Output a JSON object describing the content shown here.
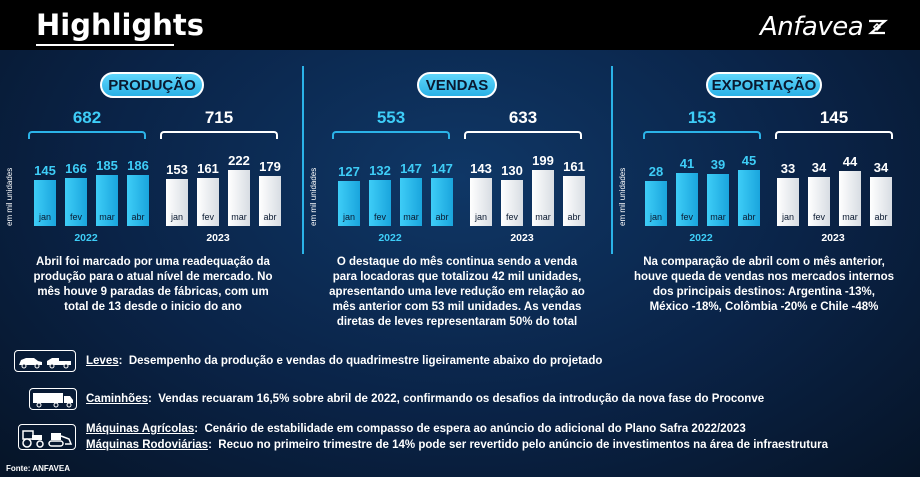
{
  "header": {
    "title": "Highlights",
    "logo": "Anfavea"
  },
  "sections": [
    {
      "label": "PRODUÇÃO",
      "total_2022": "682",
      "total_2023": "715",
      "ylabel": "em mil unidades",
      "year_2022": "2022",
      "year_2023": "2023",
      "values_2022": [
        145,
        166,
        185,
        186
      ],
      "values_2023": [
        153,
        161,
        222,
        179
      ],
      "months_2022": [
        "jan",
        "fev",
        "mar",
        "abr"
      ],
      "months_2023": [
        "jan",
        "fev",
        "mar",
        "abr"
      ],
      "desc": [
        "Abril foi marcado por uma readequação da",
        "produção para o atual nível de mercado. No",
        "mês houve 9 paradas de fábricas, com um",
        "total de 13 desde o inicio do ano"
      ]
    },
    {
      "label": "VENDAS",
      "total_2022": "553",
      "total_2023": "633",
      "ylabel": "em mil unidades",
      "year_2022": "2022",
      "year_2023": "2023",
      "values_2022": [
        127,
        132,
        147,
        147
      ],
      "values_2023": [
        143,
        130,
        199,
        161
      ],
      "months_2022": [
        "jan",
        "fev",
        "mar",
        "abr"
      ],
      "months_2023": [
        "jan",
        "fev",
        "mar",
        "abr"
      ],
      "desc": [
        "O destaque do mês continua sendo a venda",
        "para locadoras que totalizou 42 mil unidades,",
        "apresentando uma leve redução em relação ao",
        "mês anterior com 53 mil unidades. As vendas",
        "diretas de leves representaram 50% do total"
      ]
    },
    {
      "label": "EXPORTAÇÃO",
      "total_2022": "153",
      "total_2023": "145",
      "ylabel": "em mil unidades",
      "year_2022": "2022",
      "year_2023": "2023",
      "values_2022": [
        28,
        41,
        39,
        45
      ],
      "values_2023": [
        33,
        34,
        44,
        34
      ],
      "months_2022": [
        "jan",
        "fev",
        "mar",
        "abr"
      ],
      "months_2023": [
        "jan",
        "fev",
        "mar",
        "abr"
      ],
      "desc": [
        "Na comparação de abril com o mês anterior,",
        "houve queda de vendas nos mercados internos",
        "dos principais destinos: Argentina -13%,",
        "México -18%, Colômbia -20% e Chile -48%"
      ]
    }
  ],
  "rows": [
    {
      "label": "Leves",
      "text": "Desempenho da produção e vendas do quadrimestre ligeiramente abaixo do projetado",
      "icon": "cars-icon"
    },
    {
      "label": "Caminhões",
      "text": "Vendas recuaram 16,5% sobre abril de 2022, confirmando os desafios da introdução da nova fase do Proconve",
      "icon": "truck-icon"
    },
    {
      "label": "Máquinas Agrícolas",
      "text": "Cenário de estabilidade em compasso de espera ao anúncio do adicional do Plano Safra 2022/2023",
      "icon": "tractor-icon"
    },
    {
      "label": "Máquinas Rodoviárias",
      "text": "Recuo no primeiro trimestre de 14% pode ser revertido pelo anúncio de investimentos na área de infraestrutura",
      "icon": "bulldozer-icon"
    }
  ],
  "source": "Fonte: ANFAVEA",
  "chart_data": [
    {
      "type": "bar",
      "title": "PRODUÇÃO",
      "ylabel": "em mil unidades",
      "categories": [
        "jan",
        "fev",
        "mar",
        "abr"
      ],
      "series": [
        {
          "name": "2022",
          "values": [
            145,
            166,
            185,
            186
          ]
        },
        {
          "name": "2023",
          "values": [
            153,
            161,
            222,
            179
          ]
        }
      ],
      "totals": {
        "2022": 682,
        "2023": 715
      }
    },
    {
      "type": "bar",
      "title": "VENDAS",
      "ylabel": "em mil unidades",
      "categories": [
        "jan",
        "fev",
        "mar",
        "abr"
      ],
      "series": [
        {
          "name": "2022",
          "values": [
            127,
            132,
            147,
            147
          ]
        },
        {
          "name": "2023",
          "values": [
            143,
            130,
            199,
            161
          ]
        }
      ],
      "totals": {
        "2022": 553,
        "2023": 633
      }
    },
    {
      "type": "bar",
      "title": "EXPORTAÇÃO",
      "ylabel": "em mil unidades",
      "categories": [
        "jan",
        "fev",
        "mar",
        "abr"
      ],
      "series": [
        {
          "name": "2022",
          "values": [
            28,
            41,
            39,
            45
          ]
        },
        {
          "name": "2023",
          "values": [
            33,
            34,
            44,
            34
          ]
        }
      ],
      "totals": {
        "2022": 153,
        "2023": 145
      }
    }
  ]
}
